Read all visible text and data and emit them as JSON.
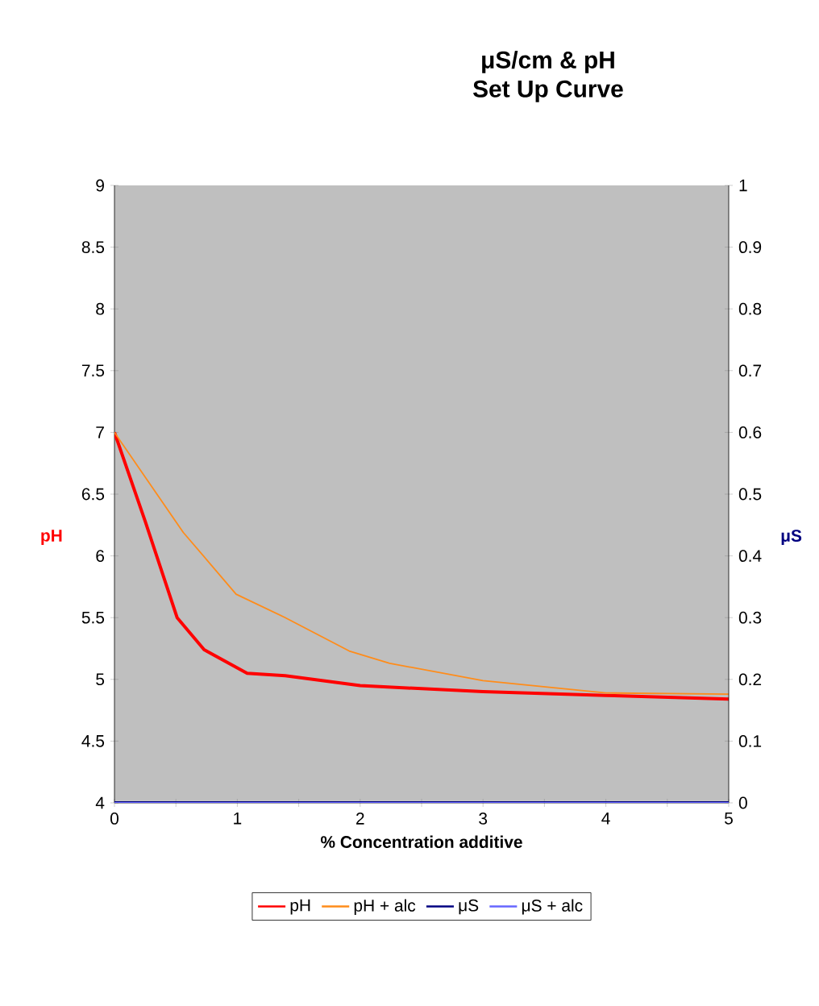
{
  "chart_data": {
    "type": "line",
    "title": "μS/cm & pH",
    "subtitle": "Set Up Curve",
    "xlabel": "% Concentration additive",
    "ylabel": "pH",
    "y2label": "μS",
    "xlim": [
      0,
      5
    ],
    "xticks": [
      0,
      {
        "value": 0.5,
        "label": null
      },
      1,
      {
        "value": 1.5,
        "label": null
      },
      2,
      {
        "value": 2.5,
        "label": null
      },
      3,
      {
        "value": 3.5,
        "label": null
      },
      4,
      {
        "value": 4.5,
        "label": null
      },
      5
    ],
    "ylim": [
      4,
      9
    ],
    "yticks": [
      4,
      4.5,
      5,
      5.5,
      6,
      6.5,
      7,
      7.5,
      8,
      8.5,
      9
    ],
    "y2lim": [
      0,
      1
    ],
    "y2ticks": [
      0,
      0.1,
      0.2,
      0.3,
      0.4,
      0.5,
      0.6,
      0.7,
      0.8,
      0.9,
      1
    ],
    "grid": false,
    "legend": "bottom",
    "marker": "none",
    "line_style": "solid",
    "series": [
      {
        "name": "pH",
        "color": "#ff0000",
        "x": [
          0,
          0.25,
          0.51,
          0.73,
          1.08,
          1.39,
          2.0,
          3.0,
          4.0,
          5.0
        ],
        "values": [
          7.0,
          6.28,
          5.5,
          5.24,
          5.05,
          5.03,
          4.95,
          4.9,
          4.87,
          4.84
        ]
      },
      {
        "name": "pH + alc",
        "color": "#ff8c1a",
        "x": [
          0,
          0.56,
          0.99,
          1.39,
          1.91,
          2.24,
          3.0,
          4.0,
          5.0
        ],
        "values": [
          7.0,
          6.19,
          5.69,
          5.5,
          5.23,
          5.13,
          4.99,
          4.89,
          4.88
        ]
      },
      {
        "name": "μS",
        "color": "#000080",
        "axis": "y2",
        "x": [
          0,
          5
        ],
        "values": [
          0,
          0
        ]
      },
      {
        "name": "μS + alc",
        "color": "#6666ff",
        "axis": "y2",
        "x": [
          0,
          5
        ],
        "values": [
          0,
          0
        ]
      }
    ]
  }
}
